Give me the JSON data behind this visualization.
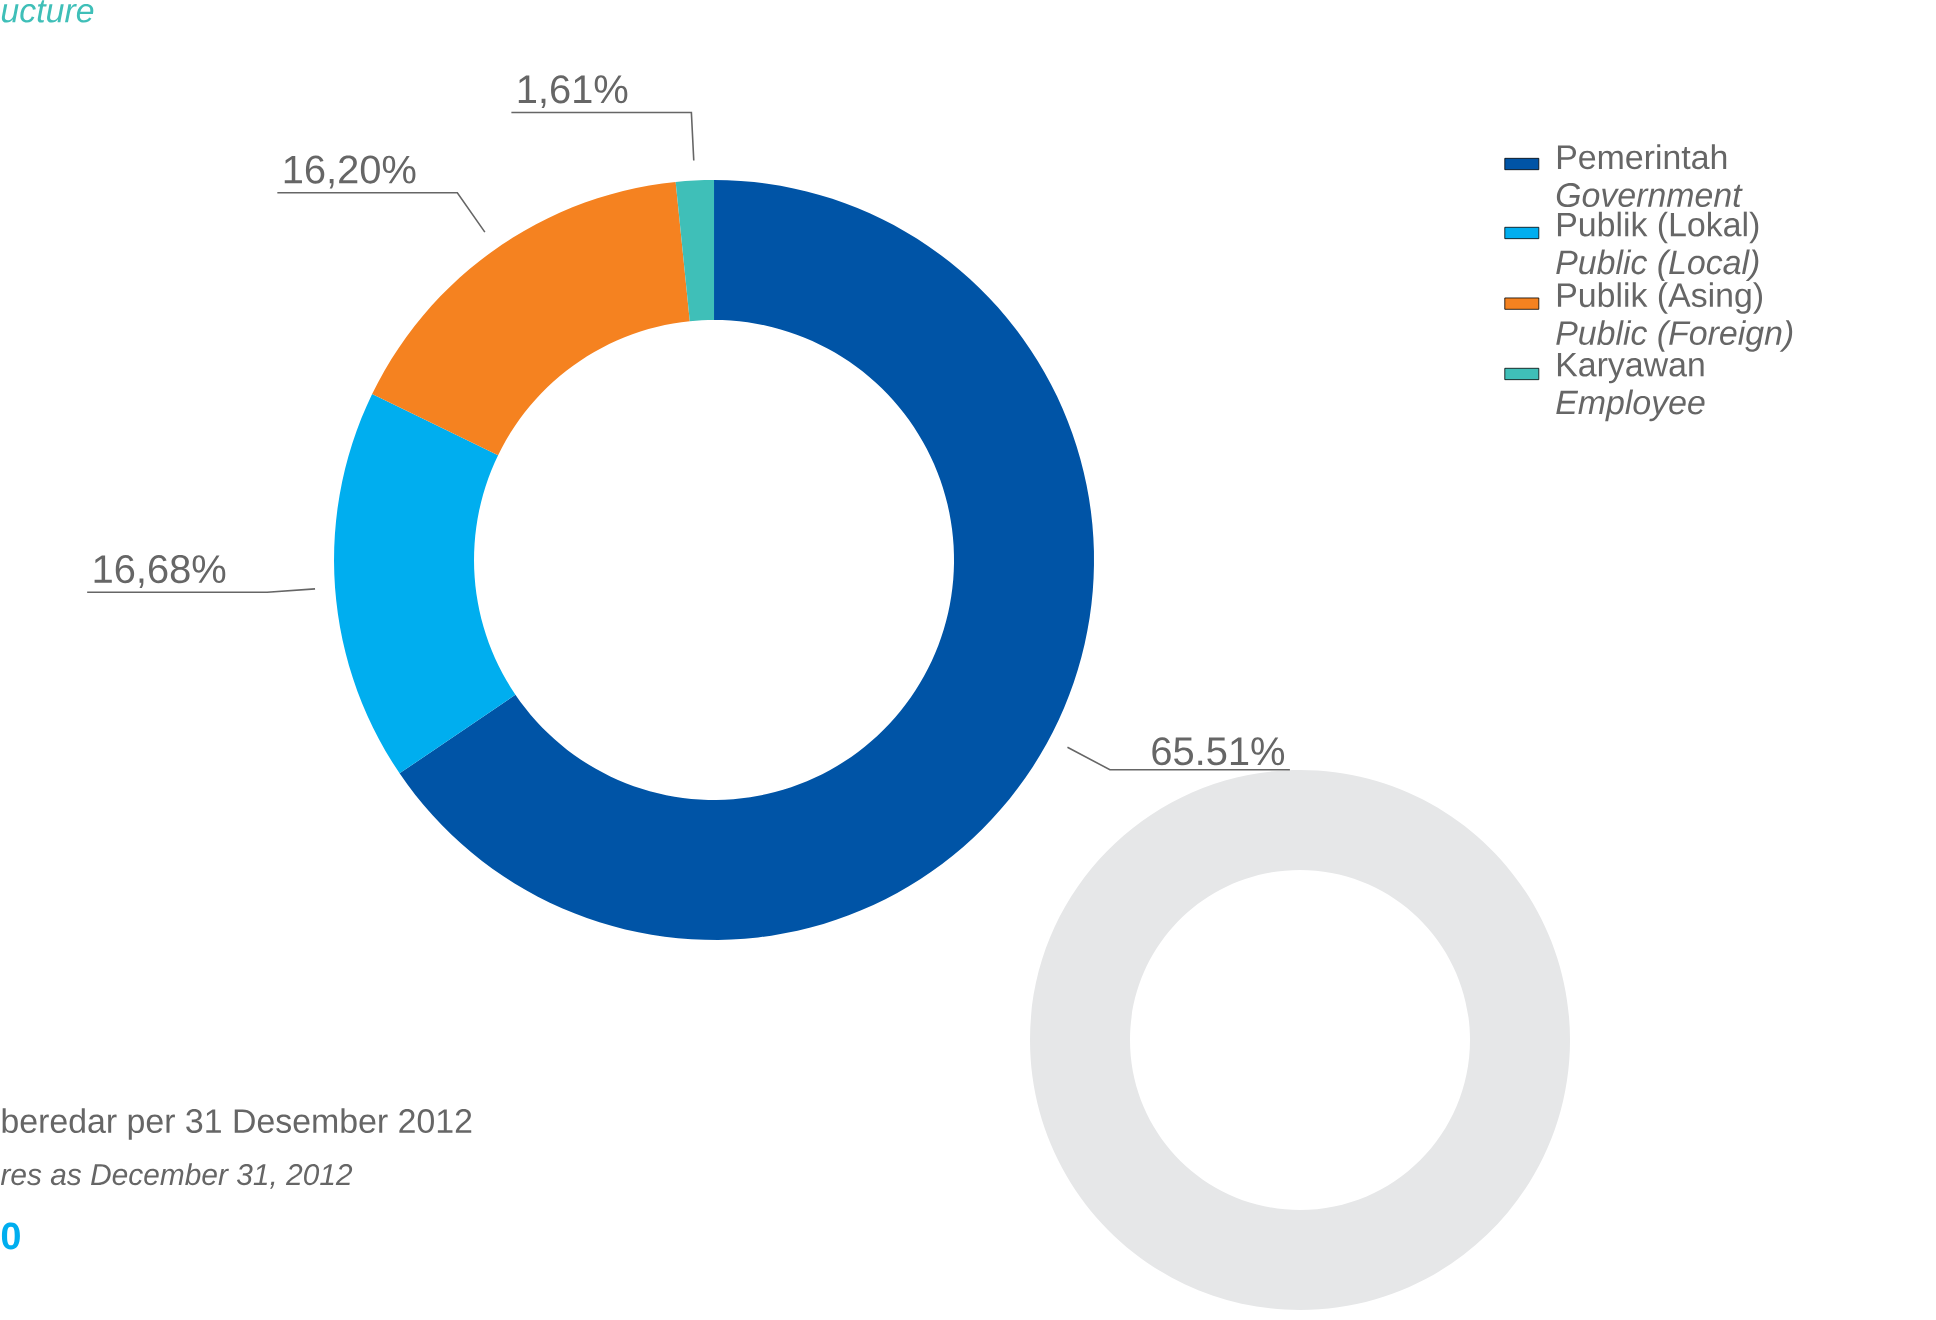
{
  "chart_data": {
    "type": "donut",
    "title": "ucture",
    "categories": [
      "Pemerintah *Government*",
      "Publik (Lokal) *Public (Local)*",
      "Publik (Asing) *Public (Foreign)*",
      "Karyawan *Employee*"
    ],
    "values": [
      65.51,
      16.68,
      16.2,
      1.61
    ],
    "colors": [
      "#0054a6",
      "#00aeef",
      "#f58220",
      "#3fbfb8"
    ],
    "value_labels": [
      "65.51%",
      "16,68%",
      "16,20%",
      "1,61%"
    ],
    "legend": "right",
    "annotations": [
      "beredar per 31 Desember 2012",
      "res as December 31, 2012",
      "0"
    ]
  }
}
